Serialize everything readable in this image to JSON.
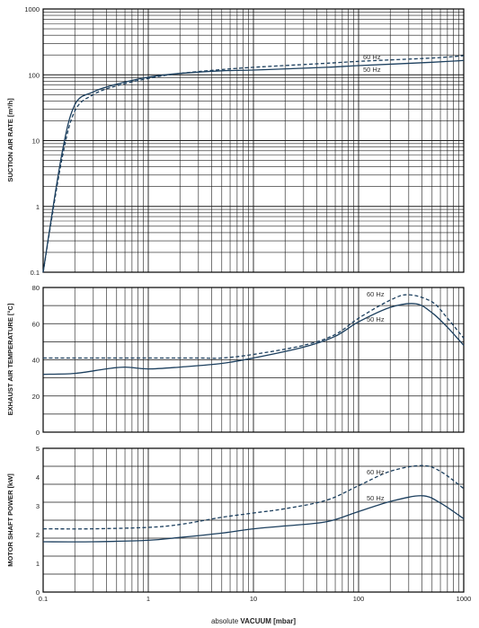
{
  "colors": {
    "line": "#1c3f5e",
    "grid": "#1a1a1a",
    "frame": "#000000"
  },
  "x_axis": {
    "label_prefix": "absolute ",
    "label_bold": "VACUUM",
    "label_unit": " [mbar]",
    "ticks": [
      "0.1",
      "1",
      "10",
      "100",
      "1000"
    ],
    "scale": "log",
    "range": [
      0.1,
      1000
    ]
  },
  "chart_data": [
    {
      "type": "line",
      "ylabel": "SUCTION AIR RATE [m³/h]",
      "yscale": "log",
      "ylim": [
        0.1,
        1000
      ],
      "yticks": [
        "0.1",
        "1",
        "10",
        "100",
        "1000"
      ],
      "grid": true,
      "series": [
        {
          "name": "60 Hz",
          "style": "dashed",
          "x": [
            0.1,
            0.15,
            0.2,
            0.3,
            0.5,
            1,
            2,
            5,
            10,
            50,
            100,
            500,
            1000
          ],
          "y": [
            0.1,
            5,
            28,
            50,
            68,
            88,
            105,
            120,
            130,
            150,
            160,
            180,
            195
          ]
        },
        {
          "name": "50 Hz",
          "style": "solid",
          "x": [
            0.1,
            0.15,
            0.2,
            0.3,
            0.5,
            1,
            2,
            5,
            10,
            50,
            100,
            500,
            1000
          ],
          "y": [
            0.1,
            6,
            35,
            55,
            72,
            92,
            105,
            115,
            118,
            130,
            138,
            155,
            165
          ]
        }
      ]
    },
    {
      "type": "line",
      "ylabel": "EXHAUST AIR TEMPERATURE [°C]",
      "yscale": "linear",
      "ylim": [
        0,
        80
      ],
      "yticks": [
        "0",
        "20",
        "40",
        "60",
        "80"
      ],
      "grid": true,
      "series": [
        {
          "name": "60 Hz",
          "style": "dashed",
          "x": [
            0.1,
            0.3,
            1,
            3,
            5,
            10,
            30,
            60,
            100,
            200,
            300,
            500,
            700,
            1000
          ],
          "y": [
            41,
            41,
            41,
            41,
            41,
            43,
            48,
            54,
            63,
            73,
            76,
            72,
            63,
            52
          ]
        },
        {
          "name": "50 Hz",
          "style": "solid",
          "x": [
            0.1,
            0.2,
            0.4,
            0.6,
            1,
            2,
            5,
            10,
            30,
            60,
            100,
            200,
            350,
            500,
            700,
            1000
          ],
          "y": [
            32,
            32.5,
            35,
            36,
            35,
            36,
            38,
            41,
            47,
            53,
            61,
            69,
            71,
            66,
            58,
            48
          ]
        }
      ]
    },
    {
      "type": "line",
      "ylabel": "MOTOR SHAFT POWER [kW]",
      "yscale": "linear",
      "ylim": [
        0,
        5
      ],
      "yticks": [
        "0",
        "1",
        "2",
        "3",
        "4",
        "5"
      ],
      "grid": true,
      "series": [
        {
          "name": "60 Hz",
          "style": "dashed",
          "x": [
            0.1,
            0.3,
            1,
            2,
            5,
            10,
            20,
            50,
            100,
            200,
            400,
            600,
            1000
          ],
          "y": [
            2.2,
            2.2,
            2.25,
            2.35,
            2.6,
            2.75,
            2.9,
            3.2,
            3.7,
            4.2,
            4.4,
            4.2,
            3.6
          ]
        },
        {
          "name": "50 Hz",
          "style": "solid",
          "x": [
            0.1,
            0.3,
            1,
            2,
            5,
            10,
            20,
            50,
            100,
            200,
            400,
            600,
            1000
          ],
          "y": [
            1.75,
            1.75,
            1.8,
            1.9,
            2.05,
            2.2,
            2.3,
            2.45,
            2.8,
            3.15,
            3.35,
            3.1,
            2.55
          ]
        }
      ]
    }
  ]
}
